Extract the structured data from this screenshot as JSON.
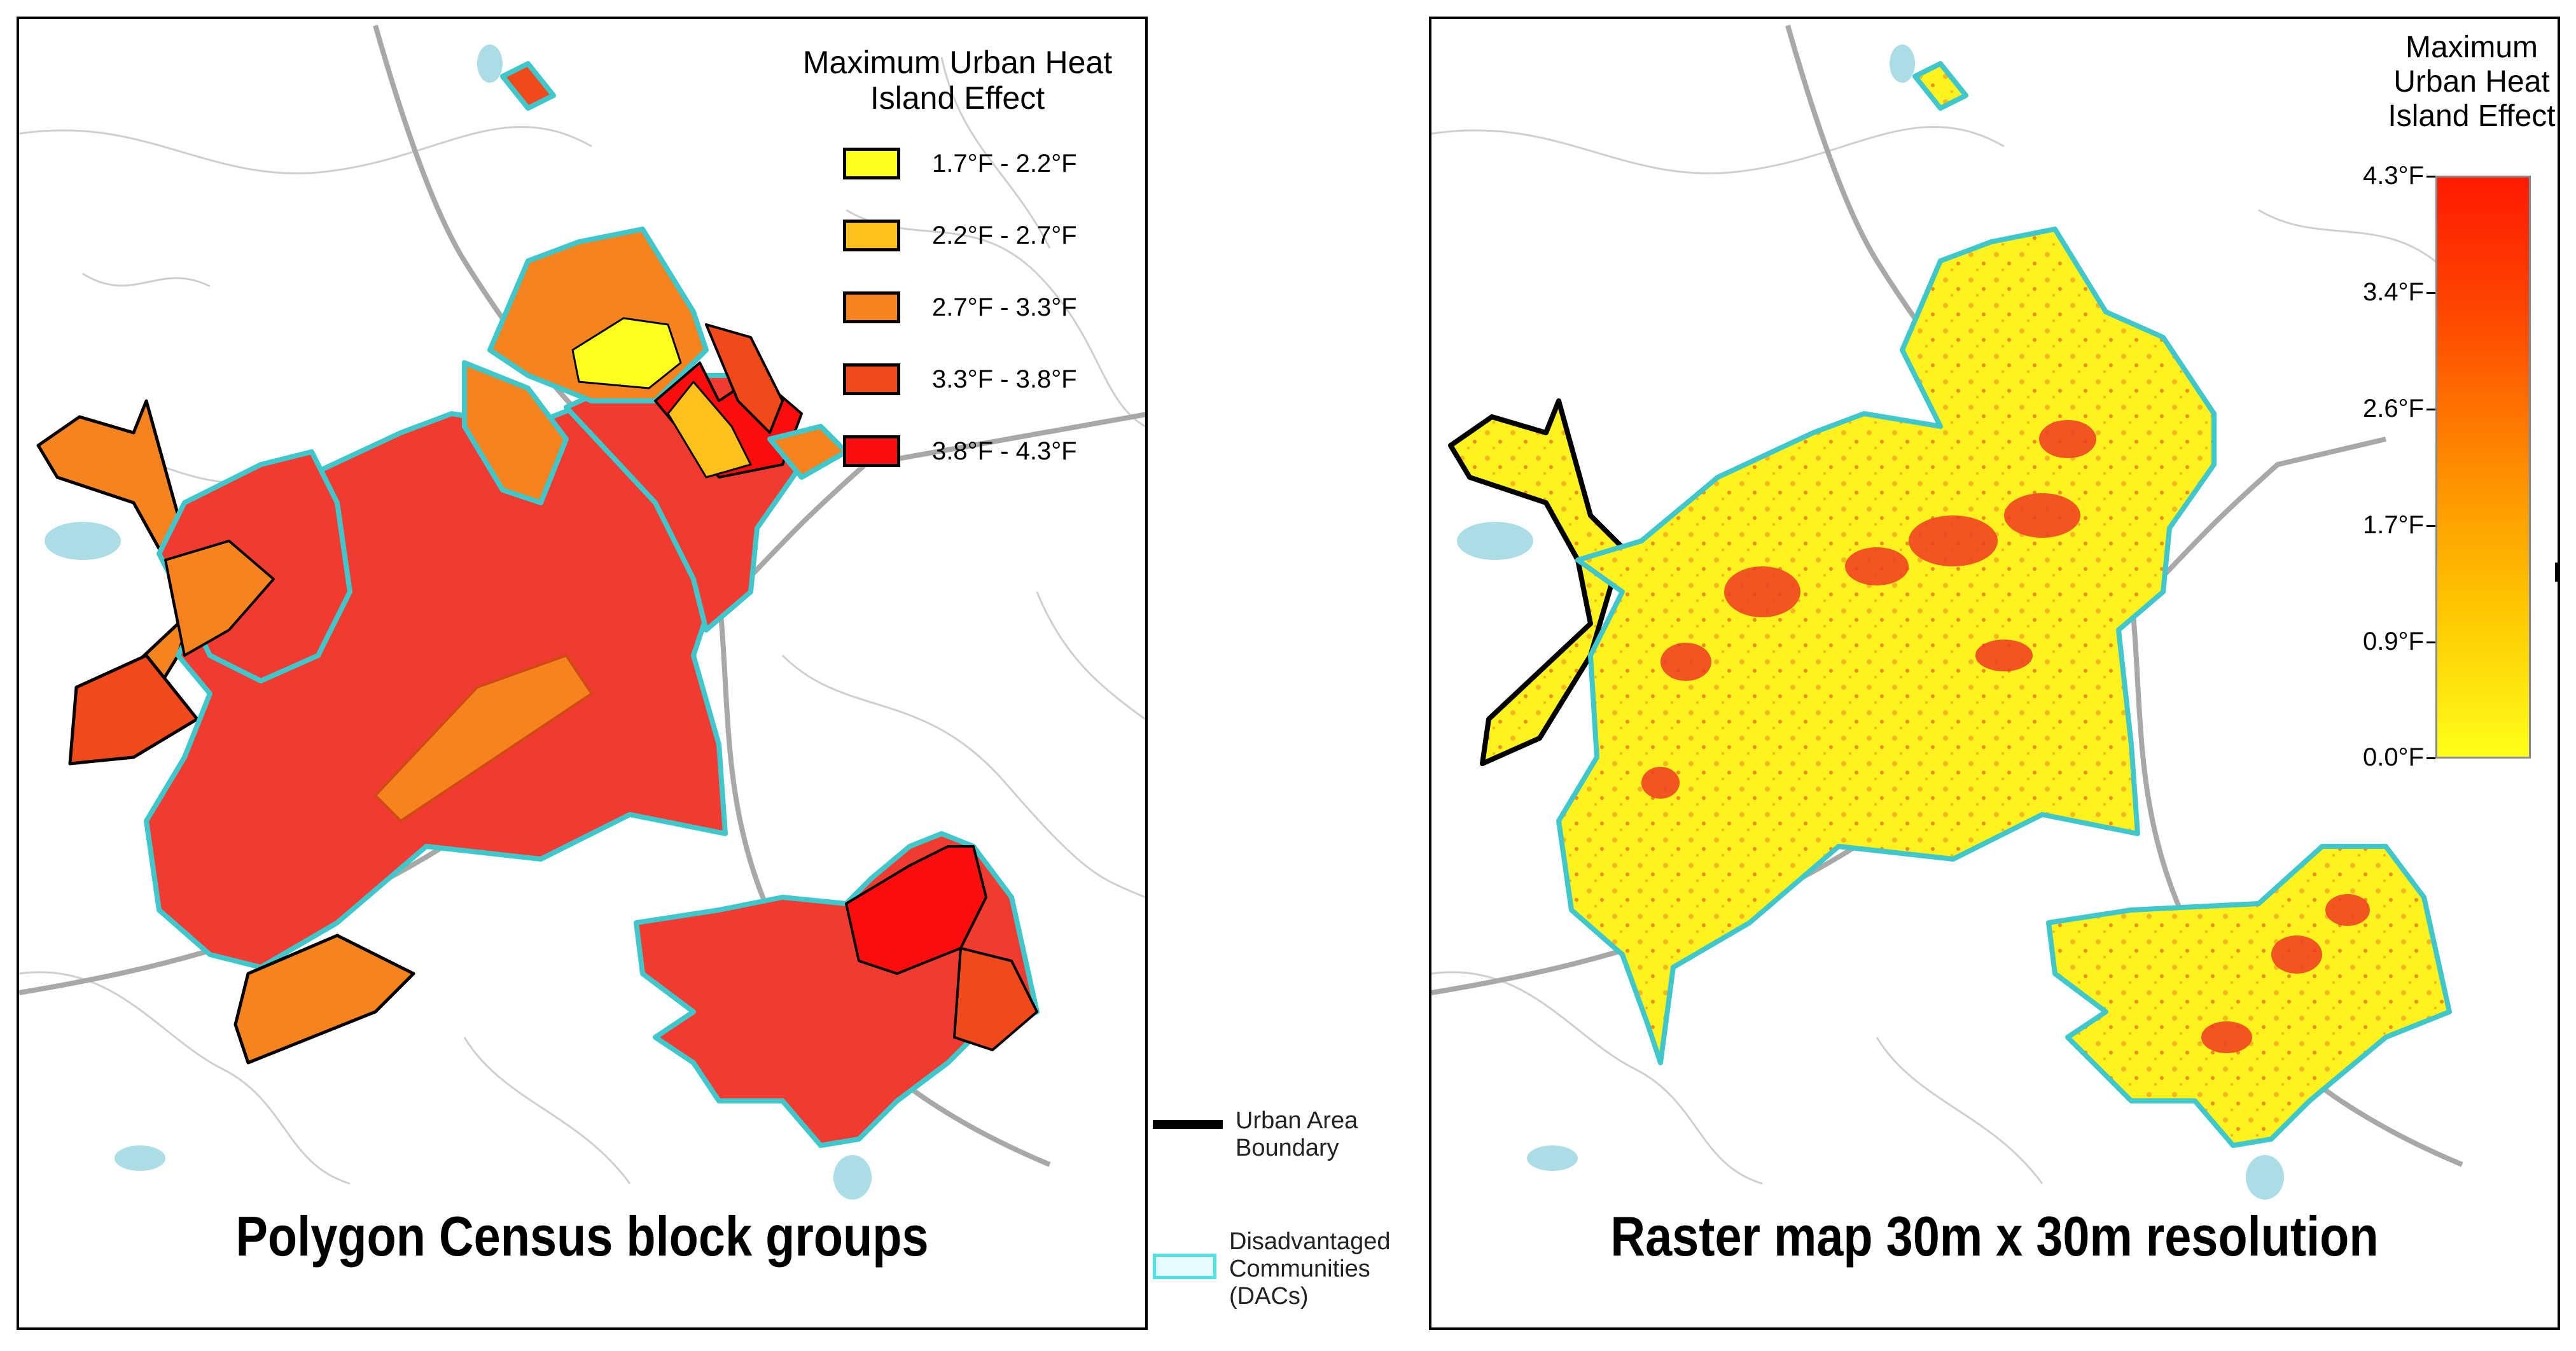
{
  "left_map": {
    "title": "Polygon Census block groups",
    "legend_title_line1": "Maximum Urban Heat",
    "legend_title_line2": "Island Effect",
    "legend_items": [
      {
        "label": "1.7°F - 2.2°F",
        "color": "#ffff1e"
      },
      {
        "label": "2.2°F - 2.7°F",
        "color": "#ffc21a"
      },
      {
        "label": "2.7°F - 3.3°F",
        "color": "#f5841f"
      },
      {
        "label": "3.3°F - 3.8°F",
        "color": "#f04a1a"
      },
      {
        "label": "3.8°F - 4.3°F",
        "color": "#fb0d0d"
      }
    ]
  },
  "right_map": {
    "title": "Raster map 30m x 30m resolution",
    "legend_title_line1": "Maximum",
    "legend_title_line2": "Urban Heat",
    "legend_title_line3": "Island Effect",
    "colorbar_ticks": [
      "4.3°F",
      "3.4°F",
      "2.6°F",
      "1.7°F",
      "0.9°F",
      "0.0°F"
    ],
    "colorbar_range": [
      0.0,
      4.3
    ],
    "colorbar_colors": {
      "high": "#ff1a00",
      "low": "#ffff1a"
    },
    "clipped_label": "I"
  },
  "shared_legend": {
    "boundary_label_line1": "Urban Area",
    "boundary_label_line2": "Boundary",
    "dac_label_line1": "Disadvantaged",
    "dac_label_line2": "Communities",
    "dac_label_line3": "(DACs)",
    "boundary_color": "#000000",
    "dac_color": "#4fe3e6"
  },
  "colors": {
    "dac_outline": "#3fc7cc",
    "water": "#aadde6",
    "road": "#bdbdbd",
    "highway": "#a8a8a8"
  }
}
